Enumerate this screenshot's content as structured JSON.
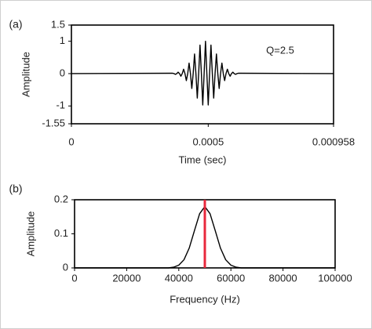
{
  "chart_data": [
    {
      "type": "line",
      "panel_label": "(a)",
      "xlabel": "Time (sec)",
      "ylabel": "Amplitude",
      "annotation": "Q=2.5",
      "x": [
        0,
        0.00037,
        0.000375,
        0.00038,
        0.000385,
        0.00039,
        0.000395,
        0.0004,
        0.000405,
        0.00041,
        0.000415,
        0.00042,
        0.000425,
        0.00043,
        0.000435,
        0.00044,
        0.000445,
        0.00045,
        0.000455,
        0.00046,
        0.000465,
        0.00047,
        0.000475,
        0.00048,
        0.000485,
        0.00049,
        0.000495,
        0.0005,
        0.000505,
        0.00051,
        0.000515,
        0.00052,
        0.000525,
        0.00053,
        0.000535,
        0.00054,
        0.000545,
        0.00055,
        0.000555,
        0.00056,
        0.000565,
        0.00057,
        0.000575,
        0.00058,
        0.000585,
        0.00059,
        0.000595,
        0.0006,
        0.000605,
        0.00061,
        0.000958
      ],
      "values": [
        0,
        0.011,
        0,
        -0.023,
        0,
        0.044,
        0,
        -0.08,
        0,
        0.135,
        0,
        -0.216,
        0,
        0.325,
        0,
        -0.458,
        0,
        0.607,
        0,
        -0.755,
        0,
        0.882,
        0,
        -0.969,
        0,
        1,
        0,
        -0.969,
        0,
        0.882,
        0,
        -0.755,
        0,
        0.607,
        0,
        -0.458,
        0,
        0.325,
        0,
        -0.216,
        0,
        0.135,
        0,
        -0.08,
        0,
        0.044,
        0,
        -0.023,
        0,
        0.011,
        0
      ],
      "color": "#000000",
      "xlim": [
        0,
        0.000958
      ],
      "xticks": [
        0,
        0.0005,
        0.000958
      ],
      "ylim": [
        -1.55,
        1.5
      ],
      "yticks": [
        -1.55,
        -1,
        0,
        1,
        1.5
      ]
    },
    {
      "type": "line",
      "panel_label": "(b)",
      "xlabel": "Frequency  (Hz)",
      "ylabel": "Amplitude",
      "x": [
        0,
        36000,
        38000,
        40000,
        42000,
        44000,
        46000,
        48000,
        50000,
        52000,
        54000,
        56000,
        58000,
        60000,
        62000,
        64000,
        100000
      ],
      "values": [
        0,
        0,
        0.002,
        0.008,
        0.024,
        0.058,
        0.109,
        0.159,
        0.18,
        0.159,
        0.109,
        0.058,
        0.024,
        0.008,
        0.002,
        0,
        0
      ],
      "color": "#000000",
      "marker_x": 50000,
      "marker_color": "#e8283c",
      "xlim": [
        0,
        100000
      ],
      "xticks": [
        0,
        20000,
        40000,
        60000,
        80000,
        100000
      ],
      "ylim": [
        0,
        0.2
      ],
      "yticks": [
        0,
        0.1,
        0.2
      ]
    }
  ]
}
